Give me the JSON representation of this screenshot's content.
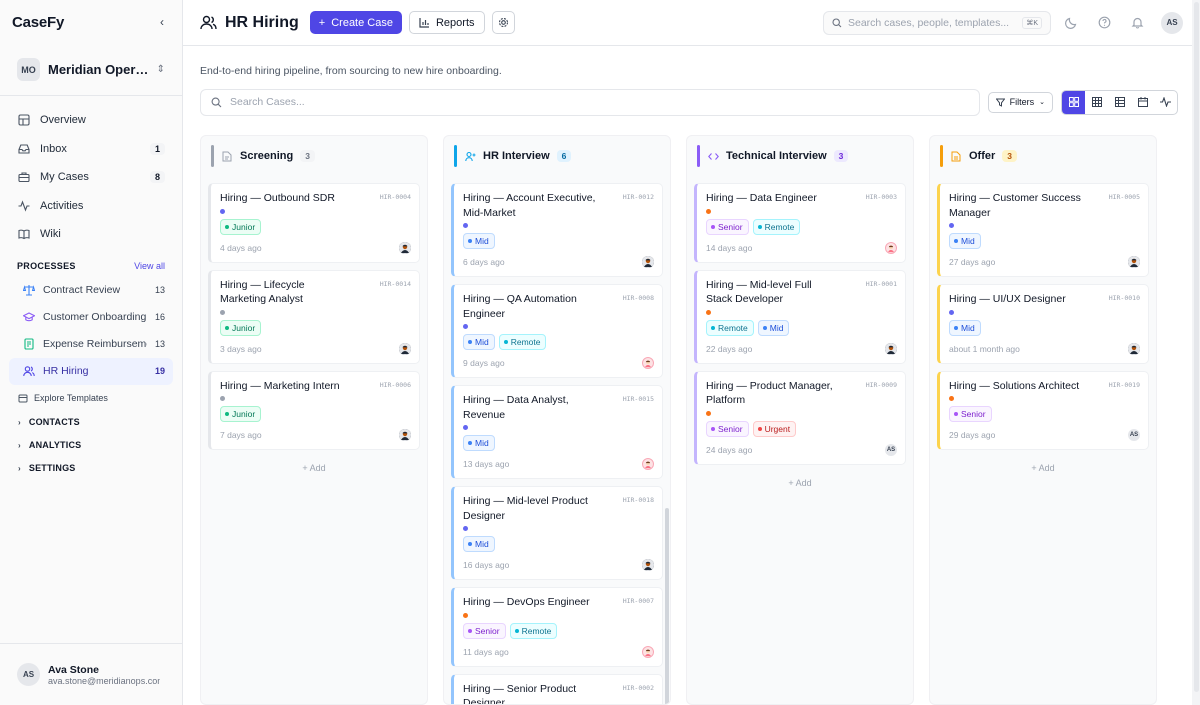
{
  "app": {
    "name": "CaseFy"
  },
  "org": {
    "initials": "MO",
    "name": "Meridian Operations"
  },
  "nav": [
    {
      "label": "Overview",
      "icon": "grid-icon",
      "count": ""
    },
    {
      "label": "Inbox",
      "icon": "inbox-icon",
      "count": "1"
    },
    {
      "label": "My Cases",
      "icon": "briefcase-icon",
      "count": "8"
    },
    {
      "label": "Activities",
      "icon": "activity-icon",
      "count": ""
    },
    {
      "label": "Wiki",
      "icon": "book-icon",
      "count": ""
    }
  ],
  "processes": {
    "title": "PROCESSES",
    "view_all": "View all",
    "items": [
      {
        "label": "Contract Review",
        "count": "13",
        "icon": "scale-icon",
        "color": "#3b82f6"
      },
      {
        "label": "Customer Onboarding",
        "count": "16",
        "icon": "graduation-cap-icon",
        "color": "#8b5cf6"
      },
      {
        "label": "Expense Reimbursement",
        "count": "13",
        "icon": "receipt-icon",
        "color": "#10b981"
      },
      {
        "label": "HR Hiring",
        "count": "19",
        "icon": "users-icon",
        "color": "#4f46e5"
      }
    ]
  },
  "explore": "Explore Templates",
  "collapsibles": [
    "CONTACTS",
    "ANALYTICS",
    "SETTINGS"
  ],
  "user": {
    "initials": "AS",
    "name": "Ava Stone",
    "email": "ava.stone@meridianops.com"
  },
  "header": {
    "title": "HR Hiring",
    "create_label": "Create Case",
    "reports_label": "Reports",
    "search_placeholder": "Search cases, people, templates...",
    "search_kbd": "⌘K",
    "avatar": "AS"
  },
  "description": "End-to-end hiring pipeline, from sourcing to new hire onboarding.",
  "toolbar": {
    "search_placeholder": "Search Cases...",
    "filters_label": "Filters"
  },
  "add_label": "Add",
  "columns": [
    {
      "name": "Screening",
      "count": "3",
      "accent": "#9ca3af",
      "icon": "file-icon",
      "cards": [
        {
          "title": "Hiring — Outbound SDR",
          "id": "HIR-0004",
          "priority": "#6366f1",
          "tags": [
            {
              "label": "Junior",
              "kind": "junior"
            }
          ],
          "age": "4 days ago",
          "avatar": "m",
          "accent": "#e5e7eb"
        },
        {
          "title": "Hiring — Lifecycle Marketing Analyst",
          "id": "HIR-0014",
          "priority": "#9ca3af",
          "tags": [
            {
              "label": "Junior",
              "kind": "junior"
            }
          ],
          "age": "3 days ago",
          "avatar": "m",
          "accent": "#e5e7eb"
        },
        {
          "title": "Hiring — Marketing Intern",
          "id": "HIR-0006",
          "priority": "#9ca3af",
          "tags": [
            {
              "label": "Junior",
              "kind": "junior"
            }
          ],
          "age": "7 days ago",
          "avatar": "m",
          "accent": "#e5e7eb"
        }
      ]
    },
    {
      "name": "HR Interview",
      "count": "6",
      "accent": "#0ea5e9",
      "icon": "user-plus-icon",
      "cards": [
        {
          "title": "Hiring — Account Executive, Mid-Market",
          "id": "HIR-0012",
          "priority": "#6366f1",
          "tags": [
            {
              "label": "Mid",
              "kind": "mid"
            }
          ],
          "age": "6 days ago",
          "avatar": "m",
          "accent": "#93c5fd"
        },
        {
          "title": "Hiring — QA Automation Engineer",
          "id": "HIR-0008",
          "priority": "#6366f1",
          "tags": [
            {
              "label": "Mid",
              "kind": "mid"
            },
            {
              "label": "Remote",
              "kind": "remote"
            }
          ],
          "age": "9 days ago",
          "avatar": "f",
          "accent": "#93c5fd"
        },
        {
          "title": "Hiring — Data Analyst, Revenue",
          "id": "HIR-0015",
          "priority": "#6366f1",
          "tags": [
            {
              "label": "Mid",
              "kind": "mid"
            }
          ],
          "age": "13 days ago",
          "avatar": "f",
          "accent": "#93c5fd"
        },
        {
          "title": "Hiring — Mid-level Product Designer",
          "id": "HIR-0018",
          "priority": "#6366f1",
          "tags": [
            {
              "label": "Mid",
              "kind": "mid"
            }
          ],
          "age": "16 days ago",
          "avatar": "m",
          "accent": "#93c5fd"
        },
        {
          "title": "Hiring — DevOps Engineer",
          "id": "HIR-0007",
          "priority": "#f97316",
          "tags": [
            {
              "label": "Senior",
              "kind": "senior"
            },
            {
              "label": "Remote",
              "kind": "remote"
            }
          ],
          "age": "11 days ago",
          "avatar": "f",
          "accent": "#93c5fd"
        },
        {
          "title": "Hiring — Senior Product Designer",
          "id": "HIR-0002",
          "priority": "#f97316",
          "tags": [],
          "age": "",
          "avatar": "",
          "accent": "#93c5fd"
        }
      ]
    },
    {
      "name": "Technical Interview",
      "count": "3",
      "accent": "#8b5cf6",
      "icon": "code-icon",
      "cards": [
        {
          "title": "Hiring — Data Engineer",
          "id": "HIR-0003",
          "priority": "#f97316",
          "tags": [
            {
              "label": "Senior",
              "kind": "senior"
            },
            {
              "label": "Remote",
              "kind": "remote"
            }
          ],
          "age": "14 days ago",
          "avatar": "f",
          "accent": "#c4b5fd"
        },
        {
          "title": "Hiring — Mid-level Full Stack Developer",
          "id": "HIR-0001",
          "priority": "#f97316",
          "tags": [
            {
              "label": "Remote",
              "kind": "remote"
            },
            {
              "label": "Mid",
              "kind": "mid"
            }
          ],
          "age": "22 days ago",
          "avatar": "m",
          "accent": "#c4b5fd"
        },
        {
          "title": "Hiring — Product Manager, Platform",
          "id": "HIR-0009",
          "priority": "#f97316",
          "tags": [
            {
              "label": "Senior",
              "kind": "senior"
            },
            {
              "label": "Urgent",
              "kind": "urgent"
            }
          ],
          "age": "24 days ago",
          "avatar": "i",
          "accent": "#c4b5fd"
        }
      ]
    },
    {
      "name": "Offer",
      "count": "3",
      "accent": "#f59e0b",
      "icon": "document-icon",
      "cards": [
        {
          "title": "Hiring — Customer Success Manager",
          "id": "HIR-0005",
          "priority": "#6366f1",
          "tags": [
            {
              "label": "Mid",
              "kind": "mid"
            }
          ],
          "age": "27 days ago",
          "avatar": "m",
          "accent": "#fcd34d"
        },
        {
          "title": "Hiring — UI/UX Designer",
          "id": "HIR-0010",
          "priority": "#6366f1",
          "tags": [
            {
              "label": "Mid",
              "kind": "mid"
            }
          ],
          "age": "about 1 month ago",
          "avatar": "m",
          "accent": "#fcd34d"
        },
        {
          "title": "Hiring — Solutions Architect",
          "id": "HIR-0019",
          "priority": "#f97316",
          "tags": [
            {
              "label": "Senior",
              "kind": "senior"
            }
          ],
          "age": "29 days ago",
          "avatar": "i",
          "accent": "#fcd34d"
        }
      ]
    }
  ],
  "tag_styles": {
    "junior": {
      "bg": "#ecfdf5",
      "border": "#a7f3d0",
      "fg": "#047857",
      "dot": "#10b981"
    },
    "mid": {
      "bg": "#eff6ff",
      "border": "#bfdbfe",
      "fg": "#1d4ed8",
      "dot": "#3b82f6"
    },
    "senior": {
      "bg": "#faf5ff",
      "border": "#e9d5ff",
      "fg": "#7e22ce",
      "dot": "#a855f7"
    },
    "remote": {
      "bg": "#ecfeff",
      "border": "#a5f3fc",
      "fg": "#0e7490",
      "dot": "#06b6d4"
    },
    "urgent": {
      "bg": "#fef2f2",
      "border": "#fecaca",
      "fg": "#b91c1c",
      "dot": "#ef4444"
    }
  },
  "avatar_initials": "AS"
}
